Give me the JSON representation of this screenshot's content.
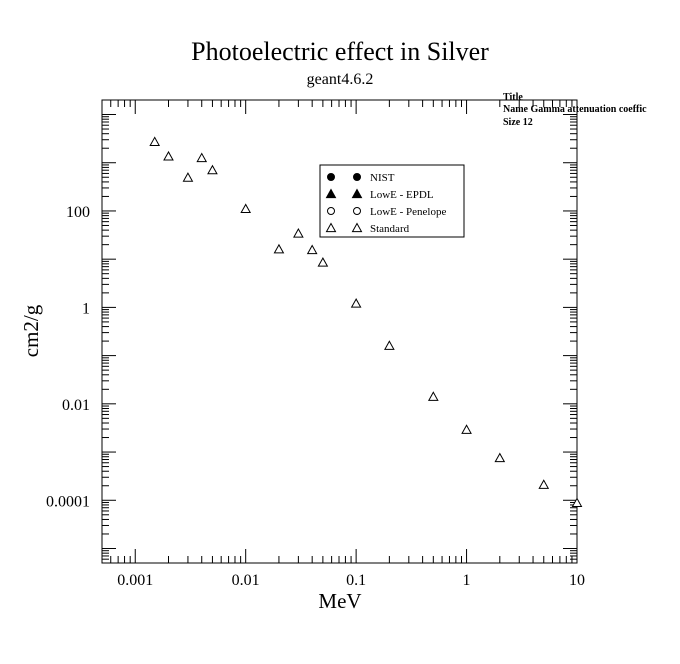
{
  "chart_data": {
    "type": "scatter",
    "title": "Photoelectric effect in Silver",
    "subtitle": "geant4.6.2",
    "xlabel": "MeV",
    "ylabel": "cm2/g",
    "x_scale": "log",
    "y_scale": "log",
    "xlim": [
      0.0005,
      10
    ],
    "ylim": [
      5e-06,
      20000
    ],
    "x_ticks": [
      {
        "value": 0.001,
        "label": "0.001"
      },
      {
        "value": 0.01,
        "label": "0.01"
      },
      {
        "value": 0.1,
        "label": "0.1"
      },
      {
        "value": 1,
        "label": "1"
      },
      {
        "value": 10,
        "label": "10"
      }
    ],
    "y_ticks": [
      {
        "value": 100,
        "label": "100"
      },
      {
        "value": 1,
        "label": "1"
      },
      {
        "value": 0.01,
        "label": "0.01"
      },
      {
        "value": 0.0001,
        "label": "0.0001"
      }
    ],
    "grid": false,
    "legend_position": "top-center",
    "series": [
      {
        "name": "NIST",
        "marker": "filled-circle",
        "x": [],
        "y": []
      },
      {
        "name": "LowE - EPDL",
        "marker": "filled-triangle",
        "x": [],
        "y": []
      },
      {
        "name": "LowE - Penelope",
        "marker": "open-circle",
        "x": [],
        "y": []
      },
      {
        "name": "Standard",
        "marker": "open-triangle",
        "x": [
          0.0015,
          0.002,
          0.003,
          0.004,
          0.005,
          0.01,
          0.02,
          0.03,
          0.04,
          0.05,
          0.1,
          0.2,
          0.5,
          1,
          2,
          5,
          10
        ],
        "y": [
          2700,
          1350,
          490,
          1250,
          700,
          110,
          16,
          34,
          15.5,
          8.5,
          1.2,
          0.16,
          0.014,
          0.0029,
          0.00075,
          0.00021,
          8.8e-05
        ]
      }
    ],
    "stats_box": {
      "line1": "Title",
      "line2": "Name  Gamma attenuation coeffic",
      "line3": "Size  12"
    }
  }
}
